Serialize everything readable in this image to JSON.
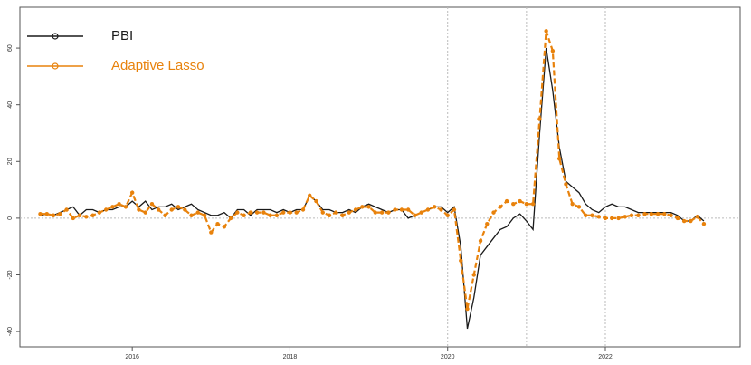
{
  "chart_data": {
    "type": "line",
    "x": [
      2014.833,
      2014.917,
      2015.0,
      2015.083,
      2015.167,
      2015.25,
      2015.333,
      2015.417,
      2015.5,
      2015.583,
      2015.667,
      2015.75,
      2015.833,
      2015.917,
      2016.0,
      2016.083,
      2016.167,
      2016.25,
      2016.333,
      2016.417,
      2016.5,
      2016.583,
      2016.667,
      2016.75,
      2016.833,
      2016.917,
      2017.0,
      2017.083,
      2017.167,
      2017.25,
      2017.333,
      2017.417,
      2017.5,
      2017.583,
      2017.667,
      2017.75,
      2017.833,
      2017.917,
      2018.0,
      2018.083,
      2018.167,
      2018.25,
      2018.333,
      2018.417,
      2018.5,
      2018.583,
      2018.667,
      2018.75,
      2018.833,
      2018.917,
      2019.0,
      2019.083,
      2019.167,
      2019.25,
      2019.333,
      2019.417,
      2019.5,
      2019.583,
      2019.667,
      2019.75,
      2019.833,
      2019.917,
      2020.0,
      2020.083,
      2020.167,
      2020.25,
      2020.333,
      2020.417,
      2020.5,
      2020.583,
      2020.667,
      2020.75,
      2020.833,
      2020.917,
      2021.0,
      2021.083,
      2021.167,
      2021.25,
      2021.333,
      2021.417,
      2021.5,
      2021.583,
      2021.667,
      2021.75,
      2021.833,
      2021.917,
      2022.0,
      2022.083,
      2022.167,
      2022.25,
      2022.333,
      2022.417,
      2022.5,
      2022.583,
      2022.667,
      2022.75,
      2022.833,
      2022.917,
      2023.0,
      2023.083,
      2023.167,
      2023.25
    ],
    "series": [
      {
        "name": "PBI",
        "color": "#1a1a1a",
        "dashed": false,
        "markers": false,
        "values": [
          1,
          1.5,
          1,
          2,
          3,
          4,
          1,
          3,
          3,
          2,
          3,
          3,
          4,
          4,
          6,
          4,
          6,
          3,
          4,
          4,
          5,
          3,
          4,
          5,
          3,
          2,
          1,
          1,
          2,
          0,
          3,
          3,
          1,
          3,
          3,
          3,
          2,
          3,
          2,
          3,
          3,
          8,
          6,
          3,
          3,
          2,
          2,
          3,
          2,
          4,
          5,
          4,
          3,
          2,
          3,
          3,
          0,
          1,
          2,
          3,
          4,
          4,
          2,
          4,
          -10,
          -39,
          -28,
          -13,
          -10,
          -7,
          -4,
          -3,
          0,
          1.5,
          -1,
          -4,
          30,
          60,
          45,
          25,
          13,
          11,
          9,
          5,
          3,
          2,
          4,
          5,
          4,
          4,
          3,
          2,
          2,
          2,
          2,
          2,
          2,
          1,
          -1,
          -1,
          1,
          -1
        ]
      },
      {
        "name": "Adaptive Lasso",
        "color": "#e8820c",
        "dashed": true,
        "markers": true,
        "values": [
          1.5,
          1.5,
          1,
          1.5,
          3,
          0,
          1,
          0.5,
          1,
          2,
          3,
          4,
          5,
          4,
          9,
          3,
          2,
          5,
          3,
          1,
          3,
          4,
          3,
          1,
          2,
          1,
          -5,
          -2,
          -3,
          0,
          2,
          1,
          2,
          2,
          2,
          1,
          1,
          2,
          2,
          2,
          3,
          8,
          6,
          2,
          1,
          2,
          1,
          2,
          3,
          4,
          4,
          2,
          2,
          2,
          3,
          3,
          3,
          1,
          2,
          3,
          4,
          3,
          1,
          3,
          -15,
          -32,
          -20,
          -8,
          -2,
          2,
          4,
          6,
          5,
          6,
          5,
          5,
          35,
          66,
          59,
          21,
          12,
          5,
          4,
          1,
          1,
          0.5,
          0,
          0,
          0,
          0.5,
          1,
          1,
          1.5,
          1.5,
          1.5,
          1.5,
          1,
          0,
          -1,
          -1,
          0.5,
          -2
        ]
      }
    ],
    "xlim": [
      2014.575,
      2023.71
    ],
    "ylim": [
      -45.4,
      74.4
    ],
    "xticks": [
      2016,
      2018,
      2020,
      2022
    ],
    "yticks": [
      -40,
      -20,
      0,
      20,
      40,
      60
    ],
    "vlines": [
      2020,
      2021,
      2022
    ],
    "hline": 0,
    "legend": "top-left"
  }
}
